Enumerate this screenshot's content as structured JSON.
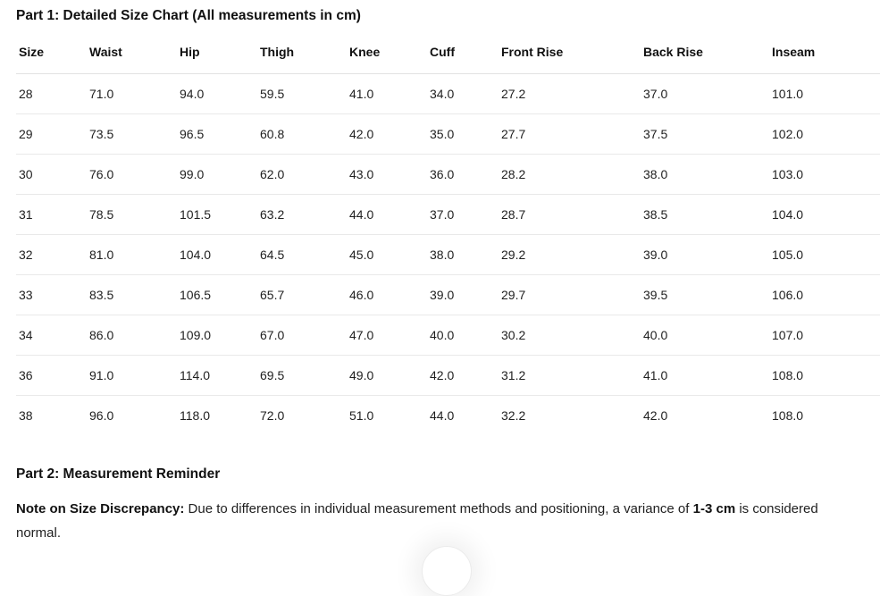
{
  "page": {
    "part1_title": "Part 1: Detailed Size Chart (All measurements in cm)",
    "part2_title": "Part 2: Measurement Reminder",
    "note_label": "Note on Size Discrepancy:",
    "note_text_1": " Due to differences in individual measurement methods and positioning, a variance of ",
    "note_bold_value": "1-3 cm",
    "note_text_2": " is considered normal."
  },
  "chart_data": {
    "type": "table",
    "title": "Part 1: Detailed Size Chart (All measurements in cm)",
    "columns": [
      "Size",
      "Waist",
      "Hip",
      "Thigh",
      "Knee",
      "Cuff",
      "Front Rise",
      "Back Rise",
      "Inseam"
    ],
    "rows": [
      [
        "28",
        "71.0",
        "94.0",
        "59.5",
        "41.0",
        "34.0",
        "27.2",
        "37.0",
        "101.0"
      ],
      [
        "29",
        "73.5",
        "96.5",
        "60.8",
        "42.0",
        "35.0",
        "27.7",
        "37.5",
        "102.0"
      ],
      [
        "30",
        "76.0",
        "99.0",
        "62.0",
        "43.0",
        "36.0",
        "28.2",
        "38.0",
        "103.0"
      ],
      [
        "31",
        "78.5",
        "101.5",
        "63.2",
        "44.0",
        "37.0",
        "28.7",
        "38.5",
        "104.0"
      ],
      [
        "32",
        "81.0",
        "104.0",
        "64.5",
        "45.0",
        "38.0",
        "29.2",
        "39.0",
        "105.0"
      ],
      [
        "33",
        "83.5",
        "106.5",
        "65.7",
        "46.0",
        "39.0",
        "29.7",
        "39.5",
        "106.0"
      ],
      [
        "34",
        "86.0",
        "109.0",
        "67.0",
        "47.0",
        "40.0",
        "30.2",
        "40.0",
        "107.0"
      ],
      [
        "36",
        "91.0",
        "114.0",
        "69.5",
        "49.0",
        "42.0",
        "31.2",
        "41.0",
        "108.0"
      ],
      [
        "38",
        "96.0",
        "118.0",
        "72.0",
        "51.0",
        "44.0",
        "32.2",
        "42.0",
        "108.0"
      ]
    ]
  },
  "colors": {
    "background": "#ffffff",
    "text": "#1a1a1a",
    "row_border": "#e9e9e9",
    "header_border": "#e2e2e2"
  }
}
